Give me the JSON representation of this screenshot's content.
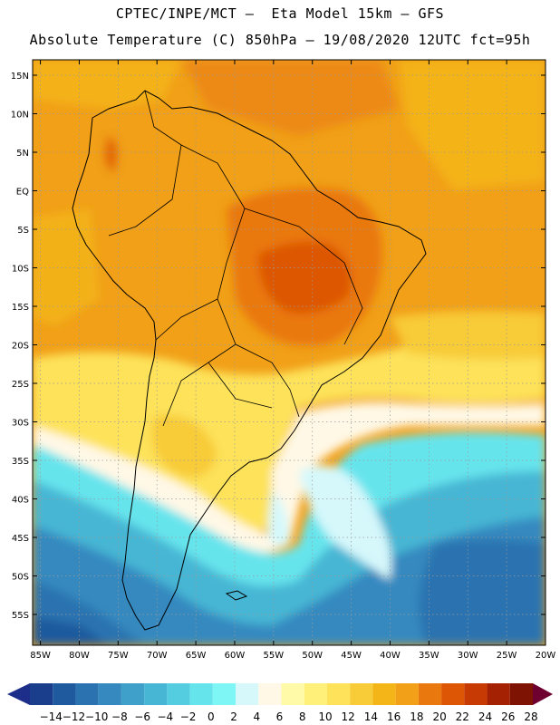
{
  "header": {
    "line1": "CPTEC/INPE/MCT –  Eta Model 15km – GFS",
    "line2": "Absolute Temperature (C) 850hPa – 19/08/2020 12UTC fct=95h"
  },
  "map": {
    "lon_range": [
      -86,
      -20
    ],
    "lat_range": [
      -59,
      17
    ],
    "grid_lon": [
      -85,
      -80,
      -75,
      -70,
      -65,
      -60,
      -55,
      -50,
      -45,
      -40,
      -35,
      -30,
      -25,
      -20
    ],
    "grid_lat": [
      15,
      10,
      5,
      0,
      -5,
      -10,
      -15,
      -20,
      -25,
      -30,
      -35,
      -40,
      -45,
      -50,
      -55
    ],
    "lon_labels": [
      "85W",
      "80W",
      "75W",
      "70W",
      "65W",
      "60W",
      "55W",
      "50W",
      "45W",
      "40W",
      "35W",
      "30W",
      "25W",
      "20W"
    ],
    "lat_labels": [
      "15N",
      "10N",
      "5N",
      "EQ",
      "5S",
      "10S",
      "15S",
      "20S",
      "25S",
      "30S",
      "35S",
      "40S",
      "45S",
      "50S",
      "55S"
    ]
  },
  "colorbar": {
    "labels": [
      "-14",
      "-12",
      "-10",
      "-8",
      "-6",
      "-4",
      "-2",
      "0",
      "2",
      "4",
      "6",
      "8",
      "10",
      "12",
      "14",
      "16",
      "18",
      "20",
      "22",
      "24",
      "26",
      "28"
    ],
    "colors": [
      "#1a3e8c",
      "#1f5a9e",
      "#2b73b0",
      "#3589bf",
      "#3fa1c9",
      "#46b6d4",
      "#55cde0",
      "#66e4ec",
      "#7ff6f6",
      "#d6f8fb",
      "#fff8e6",
      "#fffaa8",
      "#fff07a",
      "#fde25a",
      "#f8cb38",
      "#f4b519",
      "#f1a018",
      "#e9780e",
      "#dd5606",
      "#c83a04",
      "#a52103",
      "#7e1203"
    ],
    "arrow_left": "#1d2d8a",
    "arrow_right": "#6e0030"
  },
  "field": {
    "background": "#f1a018",
    "regions": [
      {
        "label": "warm core",
        "color": "#e9780e"
      },
      {
        "label": "hot core",
        "color": "#dd5606"
      },
      {
        "label": "subtropical band",
        "color": "#fde25a"
      },
      {
        "label": "cool transition",
        "color": "#fff8e6"
      },
      {
        "label": "cold southern ocean",
        "color": "#3589bf"
      }
    ]
  }
}
